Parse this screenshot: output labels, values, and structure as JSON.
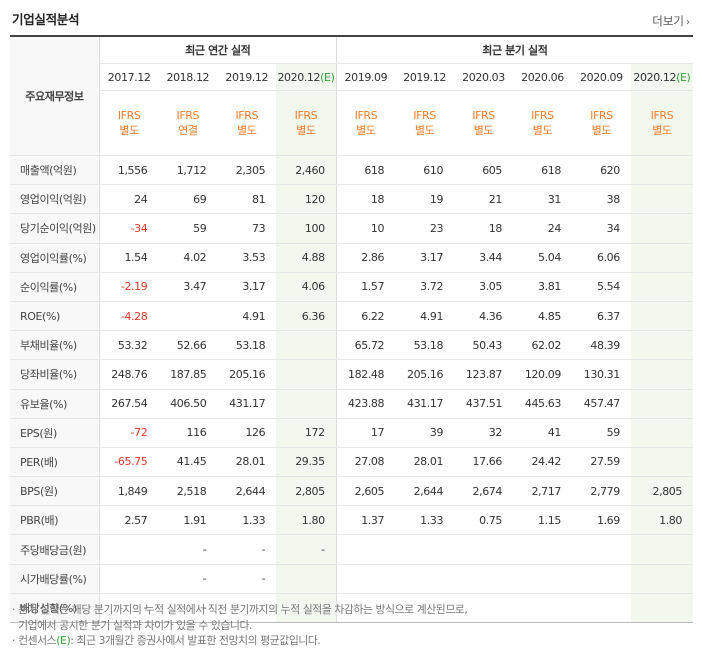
{
  "section_title": "기업실적분석",
  "more_label": "더보기",
  "row_header": "주요재무정보",
  "groups": {
    "annual": "최근 연간 실적",
    "quarterly": "최근 분기 실적"
  },
  "annual_periods": [
    {
      "label": "2017.12",
      "acc1": "IFRS",
      "acc2": "별도",
      "est": false
    },
    {
      "label": "2018.12",
      "acc1": "IFRS",
      "acc2": "연결",
      "est": false
    },
    {
      "label": "2019.12",
      "acc1": "IFRS",
      "acc2": "별도",
      "est": false
    },
    {
      "label": "2020.12",
      "est_mark": "(E)",
      "acc1": "IFRS",
      "acc2": "별도",
      "est": true
    }
  ],
  "quarter_periods": [
    {
      "label": "2019.09",
      "acc1": "IFRS",
      "acc2": "별도",
      "est": false
    },
    {
      "label": "2019.12",
      "acc1": "IFRS",
      "acc2": "별도",
      "est": false
    },
    {
      "label": "2020.03",
      "acc1": "IFRS",
      "acc2": "별도",
      "est": false
    },
    {
      "label": "2020.06",
      "acc1": "IFRS",
      "acc2": "별도",
      "est": false
    },
    {
      "label": "2020.09",
      "acc1": "IFRS",
      "acc2": "별도",
      "est": false
    },
    {
      "label": "2020.12",
      "est_mark": "(E)",
      "acc1": "IFRS",
      "acc2": "별도",
      "est": true
    }
  ],
  "rows": [
    {
      "label": "매출액(억원)",
      "section": true,
      "values": [
        "1,556",
        "1,712",
        "2,305",
        "2,460",
        "618",
        "610",
        "605",
        "618",
        "620",
        ""
      ]
    },
    {
      "label": "영업이익(억원)",
      "values": [
        "24",
        "69",
        "81",
        "120",
        "18",
        "19",
        "21",
        "31",
        "38",
        ""
      ]
    },
    {
      "label": "당기순이익(억원)",
      "values": [
        "-34",
        "59",
        "73",
        "100",
        "10",
        "23",
        "18",
        "24",
        "34",
        ""
      ]
    },
    {
      "label": "영업이익률(%)",
      "section": true,
      "values": [
        "1.54",
        "4.02",
        "3.53",
        "4.88",
        "2.86",
        "3.17",
        "3.44",
        "5.04",
        "6.06",
        ""
      ]
    },
    {
      "label": "순이익률(%)",
      "values": [
        "-2.19",
        "3.47",
        "3.17",
        "4.06",
        "1.57",
        "3.72",
        "3.05",
        "3.81",
        "5.54",
        ""
      ]
    },
    {
      "label": "ROE(%)",
      "values": [
        "-4.28",
        "",
        "4.91",
        "6.36",
        "6.22",
        "4.91",
        "4.36",
        "4.85",
        "6.37",
        ""
      ]
    },
    {
      "label": "부채비율(%)",
      "section": true,
      "values": [
        "53.32",
        "52.66",
        "53.18",
        "",
        "65.72",
        "53.18",
        "50.43",
        "62.02",
        "48.39",
        ""
      ]
    },
    {
      "label": "당좌비율(%)",
      "values": [
        "248.76",
        "187.85",
        "205.16",
        "",
        "182.48",
        "205.16",
        "123.87",
        "120.09",
        "130.31",
        ""
      ]
    },
    {
      "label": "유보율(%)",
      "values": [
        "267.54",
        "406.50",
        "431.17",
        "",
        "423.88",
        "431.17",
        "437.51",
        "445.63",
        "457.47",
        ""
      ]
    },
    {
      "label": "EPS(원)",
      "section": true,
      "values": [
        "-72",
        "116",
        "126",
        "172",
        "17",
        "39",
        "32",
        "41",
        "59",
        ""
      ]
    },
    {
      "label": "PER(배)",
      "values": [
        "-65.75",
        "41.45",
        "28.01",
        "29.35",
        "27.08",
        "28.01",
        "17.66",
        "24.42",
        "27.59",
        ""
      ]
    },
    {
      "label": "BPS(원)",
      "values": [
        "1,849",
        "2,518",
        "2,644",
        "2,805",
        "2,605",
        "2,644",
        "2,674",
        "2,717",
        "2,779",
        "2,805"
      ]
    },
    {
      "label": "PBR(배)",
      "values": [
        "2.57",
        "1.91",
        "1.33",
        "1.80",
        "1.37",
        "1.33",
        "0.75",
        "1.15",
        "1.69",
        "1.80"
      ]
    },
    {
      "label": "주당배당금(원)",
      "section": true,
      "values": [
        "",
        "-",
        "-",
        "-",
        "",
        "",
        "",
        "",
        "",
        ""
      ]
    },
    {
      "label": "시가배당률(%)",
      "values": [
        "",
        "-",
        "-",
        "",
        "",
        "",
        "",
        "",
        "",
        ""
      ]
    },
    {
      "label": "배당성향(%)",
      "values": [
        "-",
        "-",
        "",
        "",
        "",
        "",
        "",
        "",
        "",
        ""
      ]
    }
  ],
  "notes": {
    "line1": "분기 실적은 해당 분기까지의 누적 실적에서 직전 분기까지의 누적 실적을 차감하는 방식으로 계산된므로,",
    "line2": "기업에서 공시한 분기 실적과 차이가 있을 수 있습니다.",
    "line3_pre": "컨센서스",
    "line3_mark": "(E)",
    "line3_post": ": 최근 3개월간 증권사에서 발표한 전망치의 평균값입니다."
  }
}
